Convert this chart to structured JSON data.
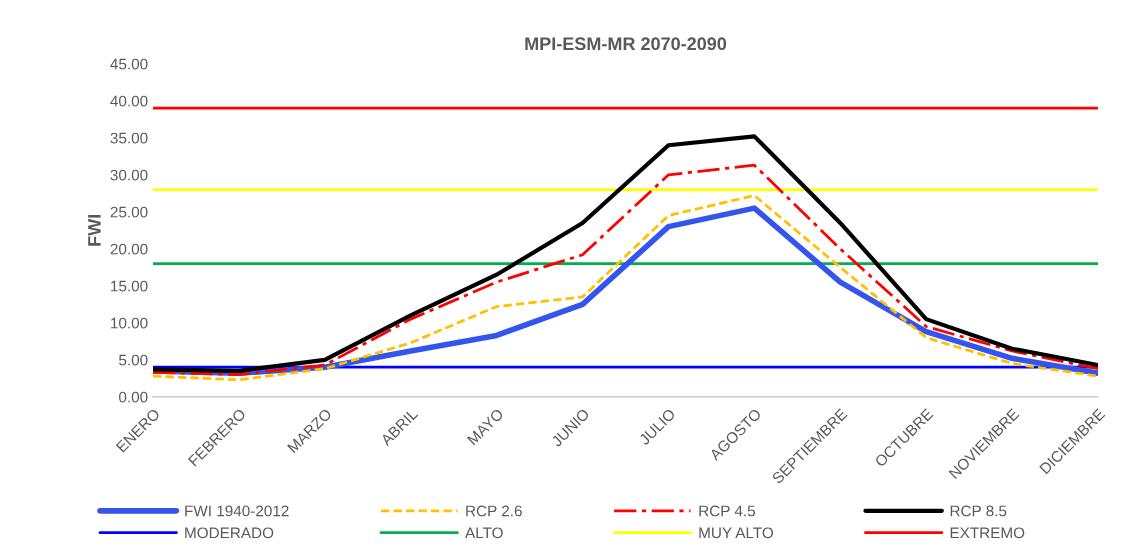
{
  "chart_data": {
    "type": "line",
    "title": "MPI-ESM-MR 2070-2090",
    "ylabel": "FWI",
    "categories": [
      "ENERO",
      "FEBRERO",
      "MARZO",
      "ABRIL",
      "MAYO",
      "JUNIO",
      "JULIO",
      "AGOSTO",
      "SEPTIEMBRE",
      "OCTUBRE",
      "NOVIEMBRE",
      "DICIEMBRE"
    ],
    "series": [
      {
        "name": "FWI 1940-2012",
        "color": "#3355ee",
        "line_style": "solid",
        "values": [
          3.5,
          3.2,
          4.0,
          6.2,
          8.3,
          12.5,
          23.0,
          25.5,
          15.5,
          8.8,
          5.2,
          3.2
        ]
      },
      {
        "name": "RCP 2.6",
        "color": "#ffc000",
        "line_style": "dashed",
        "values": [
          2.8,
          2.3,
          3.8,
          7.3,
          12.2,
          13.5,
          24.5,
          27.2,
          17.5,
          8.0,
          4.5,
          2.8
        ]
      },
      {
        "name": "RCP 4.5",
        "color": "#ff0000",
        "line_style": "dashdot",
        "values": [
          3.3,
          3.0,
          4.3,
          10.5,
          15.5,
          19.2,
          30.0,
          31.3,
          20.0,
          9.5,
          6.2,
          3.8
        ]
      },
      {
        "name": "RCP 8.5",
        "color": "#000000",
        "line_style": "solid",
        "values": [
          3.7,
          3.5,
          5.0,
          11.0,
          16.5,
          23.5,
          34.0,
          35.2,
          23.5,
          10.5,
          6.5,
          4.3
        ]
      }
    ],
    "ref_lines": [
      {
        "axis": "y",
        "value": 4,
        "label": "MODERADO",
        "color": "#0000ff"
      },
      {
        "axis": "y",
        "value": 18,
        "label": "ALTO",
        "color": "#00b050"
      },
      {
        "axis": "y",
        "value": 28,
        "label": "MUY ALTO",
        "color": "#ffff00"
      },
      {
        "axis": "y",
        "value": 39,
        "label": "EXTREMO",
        "color": "#ff0000"
      }
    ],
    "ylim": [
      0,
      45
    ],
    "yticks": [
      {
        "value": 0,
        "label": "0.00"
      },
      {
        "value": 5,
        "label": "5.00"
      },
      {
        "value": 10,
        "label": "10.00"
      },
      {
        "value": 15,
        "label": "15.00"
      },
      {
        "value": 20,
        "label": "20.00"
      },
      {
        "value": 25,
        "label": "25.00"
      },
      {
        "value": 30,
        "label": "30.00"
      },
      {
        "value": 35,
        "label": "35.00"
      },
      {
        "value": 40,
        "label": "40.00"
      },
      {
        "value": 45,
        "label": "45.00"
      }
    ],
    "grid": false,
    "legend": "bottom",
    "marker": "none"
  }
}
